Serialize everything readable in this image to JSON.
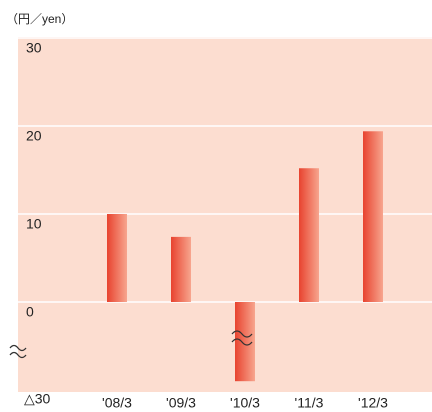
{
  "chart_data": {
    "type": "bar",
    "y_label": "（円／yen）",
    "categories": [
      "'08/3",
      "'09/3",
      "'10/3",
      "'11/3",
      "'12/3"
    ],
    "values": [
      10,
      7.4,
      -27,
      15.2,
      19.4
    ],
    "color": "#e8432f",
    "ylim": [
      -30,
      30
    ],
    "yticks": [
      {
        "value": -30,
        "label": "△30"
      },
      0,
      10,
      20,
      30
    ],
    "grid": true
  }
}
